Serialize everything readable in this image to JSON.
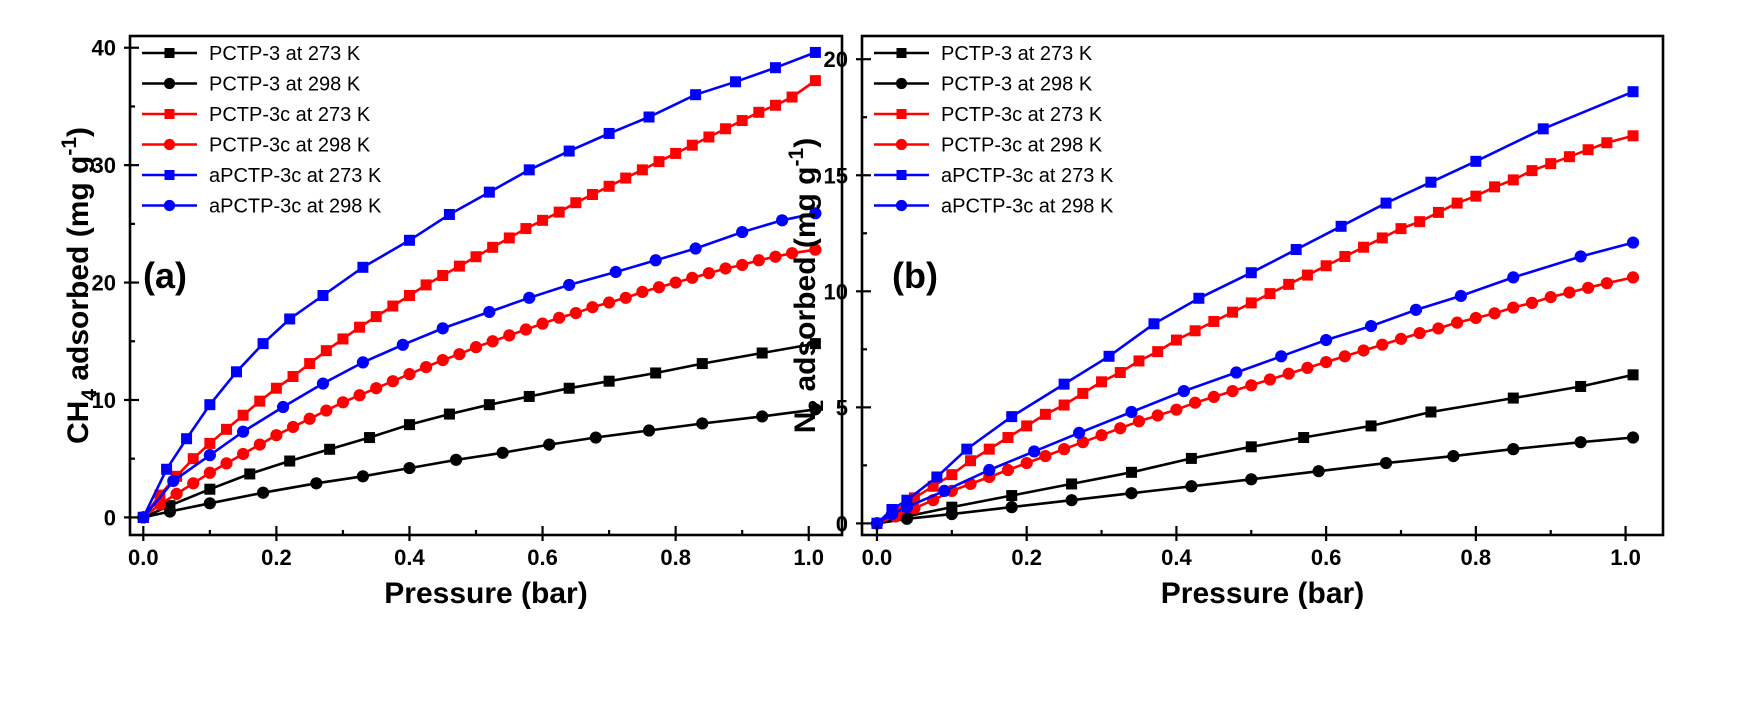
{
  "chart_data": [
    {
      "type": "line",
      "panel_label": "(a)",
      "xlabel": "Pressure (bar)",
      "ylabel": {
        "pre": "CH",
        "sub": "4",
        "mid": " adsorbed (mg g",
        "sup": "-1",
        "post": ")"
      },
      "xlim": [
        -0.02,
        1.05
      ],
      "ylim": [
        -1.5,
        41
      ],
      "xticks": [
        0.0,
        0.2,
        0.4,
        0.6,
        0.8,
        1.0
      ],
      "xtick_labels": [
        "0.0",
        "0.2",
        "0.4",
        "0.6",
        "0.8",
        "1.0"
      ],
      "yticks": [
        0,
        10,
        20,
        30,
        40
      ],
      "ytick_labels": [
        "0",
        "10",
        "20",
        "30",
        "40"
      ],
      "legend": "top-left",
      "series": [
        {
          "name": "PCTP-3 at 273 K",
          "color": "#000000",
          "marker": "square",
          "x": [
            0,
            0.04,
            0.1,
            0.16,
            0.22,
            0.28,
            0.34,
            0.4,
            0.46,
            0.52,
            0.58,
            0.64,
            0.7,
            0.77,
            0.84,
            0.93,
            1.01
          ],
          "y": [
            0,
            1.0,
            2.4,
            3.7,
            4.8,
            5.8,
            6.8,
            7.9,
            8.8,
            9.6,
            10.3,
            11.0,
            11.6,
            12.3,
            13.1,
            14.0,
            14.8
          ]
        },
        {
          "name": "PCTP-3 at 298 K",
          "color": "#000000",
          "marker": "circle",
          "x": [
            0,
            0.04,
            0.1,
            0.18,
            0.26,
            0.33,
            0.4,
            0.47,
            0.54,
            0.61,
            0.68,
            0.76,
            0.84,
            0.93,
            1.01
          ],
          "y": [
            0,
            0.5,
            1.2,
            2.1,
            2.9,
            3.5,
            4.2,
            4.9,
            5.5,
            6.2,
            6.8,
            7.4,
            8.0,
            8.6,
            9.2
          ]
        },
        {
          "name": "PCTP-3c at 273 K",
          "color": "#ff0000",
          "marker": "square",
          "x": [
            0,
            0.025,
            0.05,
            0.075,
            0.1,
            0.125,
            0.15,
            0.175,
            0.2,
            0.225,
            0.25,
            0.275,
            0.3,
            0.325,
            0.35,
            0.375,
            0.4,
            0.425,
            0.45,
            0.475,
            0.5,
            0.525,
            0.55,
            0.575,
            0.6,
            0.625,
            0.65,
            0.675,
            0.7,
            0.725,
            0.75,
            0.775,
            0.8,
            0.825,
            0.85,
            0.875,
            0.9,
            0.925,
            0.95,
            0.975,
            1.01
          ],
          "y": [
            0,
            1.9,
            3.5,
            5.0,
            6.3,
            7.5,
            8.7,
            9.9,
            11.0,
            12.0,
            13.1,
            14.2,
            15.2,
            16.2,
            17.1,
            18.0,
            18.9,
            19.8,
            20.6,
            21.4,
            22.2,
            23.0,
            23.8,
            24.6,
            25.3,
            26.0,
            26.8,
            27.5,
            28.2,
            28.9,
            29.6,
            30.3,
            31.0,
            31.7,
            32.4,
            33.1,
            33.8,
            34.5,
            35.1,
            35.8,
            37.2
          ]
        },
        {
          "name": "PCTP-3c at 298 K",
          "color": "#ff0000",
          "marker": "circle",
          "x": [
            0,
            0.025,
            0.05,
            0.075,
            0.1,
            0.125,
            0.15,
            0.175,
            0.2,
            0.225,
            0.25,
            0.275,
            0.3,
            0.325,
            0.35,
            0.375,
            0.4,
            0.425,
            0.45,
            0.475,
            0.5,
            0.525,
            0.55,
            0.575,
            0.6,
            0.625,
            0.65,
            0.675,
            0.7,
            0.725,
            0.75,
            0.775,
            0.8,
            0.825,
            0.85,
            0.875,
            0.9,
            0.925,
            0.95,
            0.975,
            1.01
          ],
          "y": [
            0,
            1.1,
            2.0,
            2.9,
            3.8,
            4.6,
            5.4,
            6.2,
            7.0,
            7.7,
            8.4,
            9.1,
            9.8,
            10.4,
            11.0,
            11.6,
            12.2,
            12.8,
            13.4,
            13.9,
            14.5,
            15.0,
            15.5,
            16.0,
            16.5,
            17.0,
            17.4,
            17.9,
            18.3,
            18.7,
            19.2,
            19.6,
            20.0,
            20.4,
            20.8,
            21.2,
            21.5,
            21.9,
            22.2,
            22.5,
            22.8
          ]
        },
        {
          "name": "aPCTP-3c at 273 K",
          "color": "#0000ff",
          "marker": "square",
          "x": [
            0,
            0.035,
            0.065,
            0.1,
            0.14,
            0.18,
            0.22,
            0.27,
            0.33,
            0.4,
            0.46,
            0.52,
            0.58,
            0.64,
            0.7,
            0.76,
            0.83,
            0.89,
            0.95,
            1.01
          ],
          "y": [
            0,
            4.1,
            6.7,
            9.6,
            12.4,
            14.8,
            16.9,
            18.9,
            21.3,
            23.6,
            25.8,
            27.7,
            29.6,
            31.2,
            32.7,
            34.1,
            36.0,
            37.1,
            38.3,
            39.6
          ]
        },
        {
          "name": "aPCTP-3c at 298 K",
          "color": "#0000ff",
          "marker": "circle",
          "x": [
            0,
            0.045,
            0.1,
            0.15,
            0.21,
            0.27,
            0.33,
            0.39,
            0.45,
            0.52,
            0.58,
            0.64,
            0.71,
            0.77,
            0.83,
            0.9,
            0.96,
            1.01
          ],
          "y": [
            0,
            3.1,
            5.3,
            7.3,
            9.4,
            11.4,
            13.2,
            14.7,
            16.1,
            17.5,
            18.7,
            19.8,
            20.9,
            21.9,
            22.9,
            24.3,
            25.3,
            25.9
          ]
        }
      ]
    },
    {
      "type": "line",
      "panel_label": "(b)",
      "xlabel": "Pressure (bar)",
      "ylabel": {
        "pre": "N",
        "sub": "2",
        "mid": " adsorbed (mg g",
        "sup": "-1",
        "post": ")"
      },
      "xlim": [
        -0.02,
        1.05
      ],
      "ylim": [
        -0.5,
        21
      ],
      "xticks": [
        0.0,
        0.2,
        0.4,
        0.6,
        0.8,
        1.0
      ],
      "xtick_labels": [
        "0.0",
        "0.2",
        "0.4",
        "0.6",
        "0.8",
        "1.0"
      ],
      "yticks": [
        0,
        5,
        10,
        15,
        20
      ],
      "ytick_labels": [
        "0",
        "5",
        "10",
        "15",
        "20"
      ],
      "legend": "top-left",
      "series": [
        {
          "name": "PCTP-3 at 273 K",
          "color": "#000000",
          "marker": "square",
          "x": [
            0,
            0.04,
            0.1,
            0.18,
            0.26,
            0.34,
            0.42,
            0.5,
            0.57,
            0.66,
            0.74,
            0.85,
            0.94,
            1.01
          ],
          "y": [
            0,
            0.3,
            0.7,
            1.2,
            1.7,
            2.2,
            2.8,
            3.3,
            3.7,
            4.2,
            4.8,
            5.4,
            5.9,
            6.4
          ]
        },
        {
          "name": "PCTP-3 at 298 K",
          "color": "#000000",
          "marker": "circle",
          "x": [
            0,
            0.04,
            0.1,
            0.18,
            0.26,
            0.34,
            0.42,
            0.5,
            0.59,
            0.68,
            0.77,
            0.85,
            0.94,
            1.01
          ],
          "y": [
            0,
            0.2,
            0.4,
            0.7,
            1.0,
            1.3,
            1.6,
            1.9,
            2.25,
            2.6,
            2.9,
            3.2,
            3.5,
            3.7
          ]
        },
        {
          "name": "PCTP-3c at 273 K",
          "color": "#ff0000",
          "marker": "square",
          "x": [
            0,
            0.025,
            0.05,
            0.075,
            0.1,
            0.125,
            0.15,
            0.175,
            0.2,
            0.225,
            0.25,
            0.275,
            0.3,
            0.325,
            0.35,
            0.375,
            0.4,
            0.425,
            0.45,
            0.475,
            0.5,
            0.525,
            0.55,
            0.575,
            0.6,
            0.625,
            0.65,
            0.675,
            0.7,
            0.725,
            0.75,
            0.775,
            0.8,
            0.825,
            0.85,
            0.875,
            0.9,
            0.925,
            0.95,
            0.975,
            1.01
          ],
          "y": [
            0,
            0.5,
            1.1,
            1.6,
            2.1,
            2.7,
            3.2,
            3.7,
            4.2,
            4.7,
            5.1,
            5.6,
            6.1,
            6.5,
            7.0,
            7.4,
            7.9,
            8.3,
            8.7,
            9.1,
            9.5,
            9.9,
            10.3,
            10.7,
            11.1,
            11.5,
            11.9,
            12.3,
            12.7,
            13.0,
            13.4,
            13.8,
            14.1,
            14.5,
            14.8,
            15.2,
            15.5,
            15.8,
            16.1,
            16.4,
            16.7
          ]
        },
        {
          "name": "PCTP-3c at 298 K",
          "color": "#ff0000",
          "marker": "circle",
          "x": [
            0,
            0.025,
            0.05,
            0.075,
            0.1,
            0.125,
            0.15,
            0.175,
            0.2,
            0.225,
            0.25,
            0.275,
            0.3,
            0.325,
            0.35,
            0.375,
            0.4,
            0.425,
            0.45,
            0.475,
            0.5,
            0.525,
            0.55,
            0.575,
            0.6,
            0.625,
            0.65,
            0.675,
            0.7,
            0.725,
            0.75,
            0.775,
            0.8,
            0.825,
            0.85,
            0.875,
            0.9,
            0.925,
            0.95,
            0.975,
            1.01
          ],
          "y": [
            0,
            0.3,
            0.65,
            1.0,
            1.4,
            1.7,
            2.0,
            2.3,
            2.6,
            2.9,
            3.2,
            3.5,
            3.8,
            4.1,
            4.4,
            4.65,
            4.9,
            5.2,
            5.45,
            5.7,
            5.95,
            6.2,
            6.45,
            6.7,
            6.95,
            7.2,
            7.45,
            7.7,
            7.95,
            8.2,
            8.4,
            8.65,
            8.85,
            9.05,
            9.3,
            9.5,
            9.75,
            9.95,
            10.15,
            10.35,
            10.6
          ]
        },
        {
          "name": "aPCTP-3c at 273 K",
          "color": "#0000ff",
          "marker": "square",
          "x": [
            0,
            0.02,
            0.04,
            0.08,
            0.12,
            0.18,
            0.25,
            0.31,
            0.37,
            0.43,
            0.5,
            0.56,
            0.62,
            0.68,
            0.74,
            0.8,
            0.89,
            1.01
          ],
          "y": [
            0,
            0.6,
            1.0,
            2.0,
            3.2,
            4.6,
            6.0,
            7.2,
            8.6,
            9.7,
            10.8,
            11.8,
            12.8,
            13.8,
            14.7,
            15.6,
            17.0,
            18.6
          ]
        },
        {
          "name": "aPCTP-3c at 298 K",
          "color": "#0000ff",
          "marker": "circle",
          "x": [
            0,
            0.02,
            0.04,
            0.09,
            0.15,
            0.21,
            0.27,
            0.34,
            0.41,
            0.48,
            0.54,
            0.6,
            0.66,
            0.72,
            0.78,
            0.85,
            0.94,
            1.01
          ],
          "y": [
            0,
            0.4,
            0.7,
            1.4,
            2.3,
            3.1,
            3.9,
            4.8,
            5.7,
            6.5,
            7.2,
            7.9,
            8.5,
            9.2,
            9.8,
            10.6,
            11.5,
            12.1
          ]
        }
      ]
    }
  ]
}
